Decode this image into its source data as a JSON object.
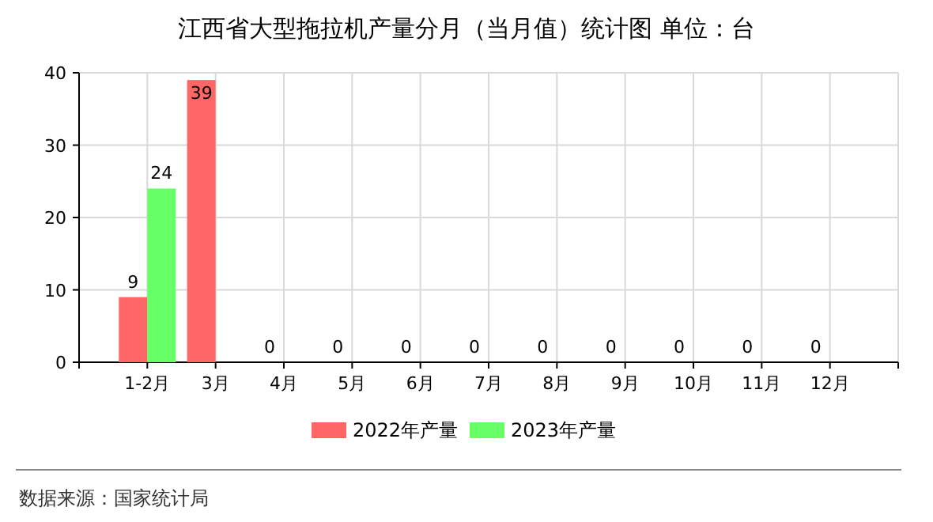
{
  "chart_data": {
    "type": "bar",
    "title": "江西省大型拖拉机产量分月（当月值）统计图 单位：台",
    "categories": [
      "1-2月",
      "3月",
      "4月",
      "5月",
      "6月",
      "7月",
      "8月",
      "9月",
      "10月",
      "11月",
      "12月"
    ],
    "series": [
      {
        "name": "2022年产量",
        "color": "#ff6666",
        "values": [
          9,
          39,
          0,
          0,
          0,
          0,
          0,
          0,
          0,
          0,
          0
        ]
      },
      {
        "name": "2023年产量",
        "color": "#66ff66",
        "values": [
          24,
          null,
          null,
          null,
          null,
          null,
          null,
          null,
          null,
          null,
          null
        ]
      }
    ],
    "ylim": [
      0,
      40
    ],
    "yticks": [
      0,
      10,
      20,
      30,
      40
    ],
    "grid": true,
    "legend": "bottom",
    "data_labels": true,
    "annotations": [
      "数据来源：国家统计局"
    ]
  }
}
